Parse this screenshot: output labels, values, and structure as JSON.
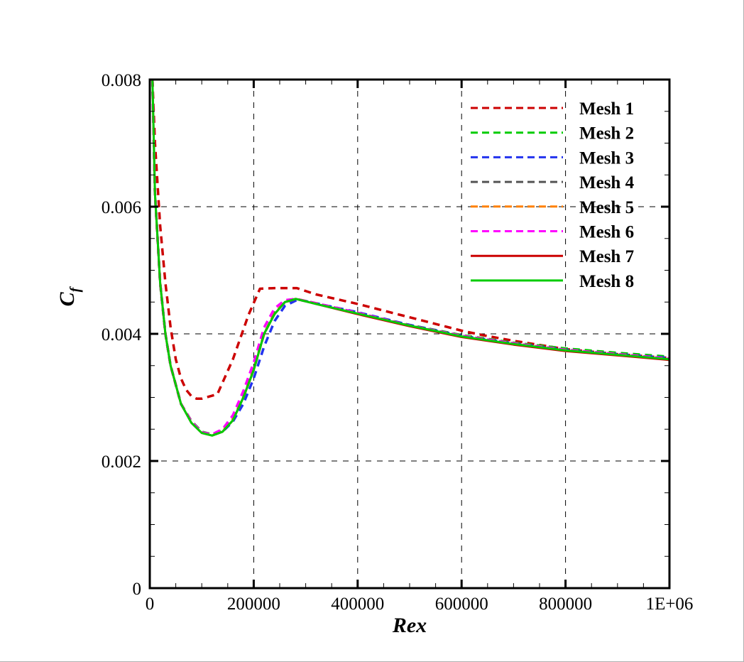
{
  "chart_data": {
    "type": "line",
    "title": "",
    "xlabel": "Rex",
    "ylabel": "Cf",
    "ylabel_main": "C",
    "ylabel_sub": "f",
    "xlim": [
      0,
      1000000
    ],
    "ylim": [
      0,
      0.008
    ],
    "x_ticks": [
      0,
      200000,
      400000,
      600000,
      800000,
      1000000
    ],
    "x_tick_labels": [
      "0",
      "200000",
      "400000",
      "600000",
      "800000",
      "1E+06"
    ],
    "y_ticks": [
      0,
      0.002,
      0.004,
      0.006,
      0.008
    ],
    "y_tick_labels": [
      "0",
      "0.002",
      "0.004",
      "0.006",
      "0.008"
    ],
    "x_minor_step": 50000,
    "y_minor_step": 0.0005,
    "grid": true,
    "legend_position": "upper right",
    "series": [
      {
        "name": "Mesh 1",
        "color": "#cc0000",
        "style": "dashed",
        "x": [
          5000,
          10000,
          20000,
          30000,
          40000,
          50000,
          60000,
          70000,
          80000,
          90000,
          100000,
          130000,
          160000,
          190000,
          212000,
          240000,
          283000,
          320000,
          400000,
          500000,
          600000,
          640000,
          700000,
          800000,
          900000,
          1000000
        ],
        "y": [
          0.008,
          0.007,
          0.0057,
          0.0048,
          0.0041,
          0.0036,
          0.0033,
          0.00312,
          0.00302,
          0.00298,
          0.00298,
          0.00305,
          0.0036,
          0.0043,
          0.00471,
          0.00472,
          0.00472,
          0.00462,
          0.00447,
          0.00426,
          0.00405,
          0.00398,
          0.00389,
          0.00376,
          0.00368,
          0.00362
        ]
      },
      {
        "name": "Mesh 2",
        "color": "#00cc00",
        "style": "dashed",
        "x": [
          5000,
          10000,
          20000,
          30000,
          40000,
          60000,
          80000,
          100000,
          120000,
          140000,
          160000,
          180000,
          200000,
          220000,
          240000,
          260000,
          281000,
          320000,
          400000,
          500000,
          600000,
          700000,
          800000,
          900000,
          1000000
        ],
        "y": [
          0.008,
          0.0062,
          0.0048,
          0.004,
          0.0035,
          0.0029,
          0.00263,
          0.00246,
          0.00242,
          0.00248,
          0.00268,
          0.003,
          0.00346,
          0.004,
          0.00433,
          0.0045,
          0.00455,
          0.00448,
          0.00433,
          0.00414,
          0.00398,
          0.00386,
          0.00377,
          0.0037,
          0.00364
        ]
      },
      {
        "name": "Mesh 3",
        "color": "#2233ee",
        "style": "dashed",
        "x": [
          5000,
          10000,
          20000,
          30000,
          40000,
          60000,
          80000,
          100000,
          120000,
          140000,
          160000,
          180000,
          200000,
          220000,
          240000,
          260000,
          285000,
          320000,
          400000,
          500000,
          600000,
          700000,
          800000,
          900000,
          1000000
        ],
        "y": [
          0.008,
          0.0062,
          0.0048,
          0.004,
          0.0035,
          0.0029,
          0.00262,
          0.00245,
          0.00241,
          0.00246,
          0.00262,
          0.0029,
          0.0033,
          0.0038,
          0.0042,
          0.00444,
          0.00454,
          0.00448,
          0.00434,
          0.00414,
          0.00397,
          0.00385,
          0.00375,
          0.00368,
          0.00362
        ]
      },
      {
        "name": "Mesh 4",
        "color": "#555555",
        "style": "dashed",
        "x": [
          5000,
          10000,
          20000,
          30000,
          40000,
          60000,
          80000,
          100000,
          120000,
          140000,
          160000,
          180000,
          200000,
          220000,
          240000,
          260000,
          281000,
          320000,
          400000,
          500000,
          600000,
          700000,
          800000,
          900000,
          1000000
        ],
        "y": [
          0.008,
          0.0062,
          0.0048,
          0.004,
          0.0035,
          0.0029,
          0.00262,
          0.00245,
          0.00241,
          0.00247,
          0.00266,
          0.003,
          0.00344,
          0.004,
          0.00432,
          0.0045,
          0.00455,
          0.00448,
          0.00433,
          0.00413,
          0.00397,
          0.00385,
          0.00375,
          0.00368,
          0.00361
        ]
      },
      {
        "name": "Mesh 5",
        "color": "#ff8000",
        "style": "dashed",
        "x": [
          5000,
          10000,
          20000,
          30000,
          40000,
          60000,
          80000,
          100000,
          120000,
          140000,
          160000,
          180000,
          200000,
          220000,
          240000,
          260000,
          281000,
          320000,
          400000,
          500000,
          600000,
          700000,
          800000,
          900000,
          1000000
        ],
        "y": [
          0.008,
          0.0062,
          0.0048,
          0.004,
          0.0035,
          0.0029,
          0.00262,
          0.00245,
          0.00241,
          0.00247,
          0.00266,
          0.003,
          0.00344,
          0.004,
          0.00432,
          0.0045,
          0.00455,
          0.00448,
          0.00433,
          0.00413,
          0.00397,
          0.00385,
          0.00375,
          0.00368,
          0.00361
        ]
      },
      {
        "name": "Mesh 6",
        "color": "#ff00ff",
        "style": "dashed",
        "x": [
          5000,
          10000,
          20000,
          30000,
          40000,
          60000,
          80000,
          100000,
          120000,
          140000,
          160000,
          180000,
          200000,
          220000,
          240000,
          260000,
          281000,
          320000,
          400000,
          500000,
          600000,
          700000,
          800000,
          900000,
          1000000
        ],
        "y": [
          0.008,
          0.0062,
          0.0048,
          0.004,
          0.0035,
          0.0029,
          0.00262,
          0.00245,
          0.00242,
          0.0025,
          0.00272,
          0.0031,
          0.00355,
          0.0041,
          0.0044,
          0.00453,
          0.00455,
          0.00448,
          0.00433,
          0.00413,
          0.00397,
          0.00385,
          0.00375,
          0.00368,
          0.00361
        ]
      },
      {
        "name": "Mesh 7",
        "color": "#cc0000",
        "style": "solid",
        "x": [
          5000,
          10000,
          20000,
          30000,
          40000,
          60000,
          80000,
          100000,
          120000,
          140000,
          160000,
          180000,
          200000,
          220000,
          240000,
          260000,
          281000,
          320000,
          400000,
          500000,
          600000,
          700000,
          800000,
          900000,
          1000000
        ],
        "y": [
          0.008,
          0.0062,
          0.0048,
          0.004,
          0.0035,
          0.0029,
          0.0026,
          0.00244,
          0.0024,
          0.00246,
          0.00264,
          0.003,
          0.00343,
          0.004,
          0.00431,
          0.0045,
          0.00455,
          0.00447,
          0.00431,
          0.00412,
          0.00395,
          0.00383,
          0.00373,
          0.00366,
          0.00359
        ]
      },
      {
        "name": "Mesh 8",
        "color": "#00cc00",
        "style": "solid",
        "x": [
          5000,
          10000,
          20000,
          30000,
          40000,
          60000,
          80000,
          100000,
          120000,
          140000,
          160000,
          180000,
          200000,
          220000,
          240000,
          260000,
          281000,
          320000,
          400000,
          500000,
          600000,
          700000,
          800000,
          900000,
          1000000
        ],
        "y": [
          0.008,
          0.0062,
          0.0048,
          0.004,
          0.0035,
          0.0029,
          0.0026,
          0.00244,
          0.0024,
          0.00246,
          0.00264,
          0.003,
          0.00343,
          0.004,
          0.00431,
          0.0045,
          0.00455,
          0.00447,
          0.00432,
          0.00413,
          0.00396,
          0.00384,
          0.00374,
          0.00367,
          0.0036
        ]
      }
    ]
  }
}
